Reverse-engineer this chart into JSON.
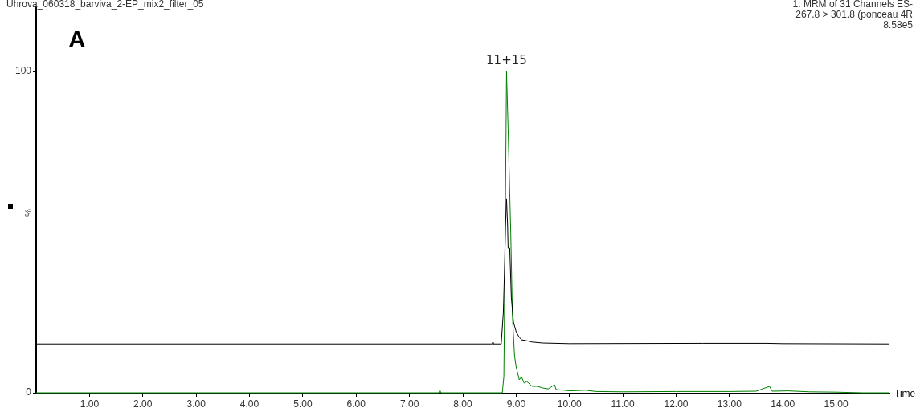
{
  "chart_data": {
    "type": "line",
    "title": "Uhrova_060318_barviva_2-EP_mix2_filter_05",
    "xlabel": "Time",
    "ylabel": "%",
    "annotations": [
      "A",
      "1: MRM of 31 Channels ES-",
      "267.8 > 301.8 (ponceau 4R",
      "8.58e5",
      {
        "text": "11+15",
        "x": 8.82,
        "y": 100
      }
    ],
    "xlim": [
      0,
      16
    ],
    "ylim": [
      0,
      120
    ],
    "xticks": [
      {
        "value": 1,
        "label": "1.00"
      },
      {
        "value": 2,
        "label": "2.00"
      },
      {
        "value": 3,
        "label": "3.00"
      },
      {
        "value": 4,
        "label": "4.00"
      },
      {
        "value": 5,
        "label": "5.00"
      },
      {
        "value": 6,
        "label": "6.00"
      },
      {
        "value": 7,
        "label": "7.00"
      },
      {
        "value": 8,
        "label": "8.00"
      },
      {
        "value": 9,
        "label": "9.00"
      },
      {
        "value": 10,
        "label": "10.00"
      },
      {
        "value": 11,
        "label": "11.00"
      },
      {
        "value": 12,
        "label": "12.00"
      },
      {
        "value": 13,
        "label": "13.00"
      },
      {
        "value": 14,
        "label": "14.00"
      },
      {
        "value": 15,
        "label": "15.00"
      }
    ],
    "yticks": [
      0,
      100
    ],
    "grid": false,
    "legend": false,
    "marker": "none",
    "line_style": "solid",
    "series": [
      {
        "color": "#000000",
        "x": [
          0,
          8.55,
          8.56,
          8.57,
          8.72,
          8.76,
          8.78,
          8.8,
          8.82,
          8.84,
          8.85,
          8.88,
          8.91,
          8.95,
          9.0,
          9.05,
          9.1,
          9.2,
          9.3,
          9.5,
          10,
          12.5,
          13.7,
          14,
          16
        ],
        "values": [
          15.2,
          15.2,
          15.7,
          15.2,
          15.2,
          25,
          37,
          52,
          60.3,
          52,
          45,
          45,
          29.7,
          22,
          19,
          17.5,
          16.5,
          16.2,
          15.8,
          15.5,
          15.3,
          15.4,
          15.4,
          15.3,
          15.2
        ]
      },
      {
        "color": "#008000",
        "x": [
          0,
          7.55,
          7.57,
          7.59,
          8.74,
          8.77,
          8.79,
          8.82,
          8.85,
          8.9,
          8.93,
          8.97,
          9.0,
          9.06,
          9.1,
          9.15,
          9.2,
          9.3,
          9.4,
          9.5,
          9.6,
          9.72,
          9.75,
          9.9,
          10.0,
          10.3,
          10.5,
          11,
          12,
          13,
          13.5,
          13.75,
          13.8,
          14.1,
          14.5,
          15.0,
          15.5,
          16
        ],
        "values": [
          0,
          0,
          0.8,
          0,
          0,
          5,
          40,
          100,
          82,
          49,
          24,
          11.5,
          8,
          4,
          5,
          3,
          3.5,
          2,
          2,
          1.5,
          1.2,
          2.5,
          1,
          0.8,
          0.6,
          0.8,
          0.4,
          0.3,
          0.4,
          0.4,
          0.5,
          2,
          0.5,
          0.6,
          0.3,
          0.2,
          0,
          0
        ]
      }
    ]
  }
}
